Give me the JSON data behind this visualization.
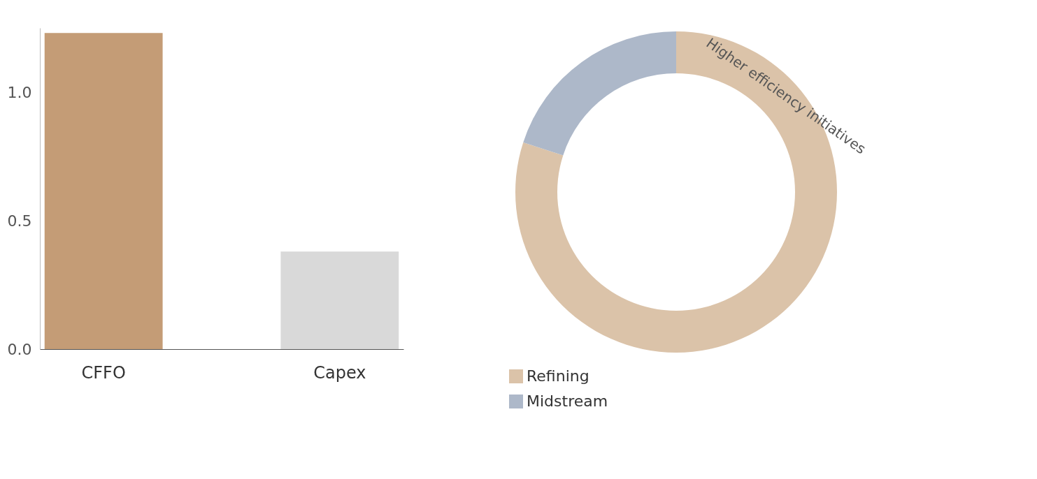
{
  "chart_data": [
    {
      "type": "bar",
      "categories": [
        "CFFO",
        "Capex"
      ],
      "values": [
        1.23,
        0.38
      ],
      "colors": [
        "#c49c76",
        "#d9d9d9"
      ],
      "ylim": [
        0,
        1.25
      ],
      "yticks": [
        {
          "value": 0,
          "label": "0.0"
        },
        {
          "value": 0.5,
          "label": "0.5"
        },
        {
          "value": 1,
          "label": "1.0"
        }
      ],
      "grid": false
    },
    {
      "type": "donut",
      "categories": [
        "Refining",
        "Midstream"
      ],
      "values": [
        80,
        20
      ],
      "colors": [
        "#dbc3a9",
        "#adb8c9"
      ],
      "legend": "bottom",
      "annotations": [
        "Higher efficiency initiatives"
      ]
    }
  ]
}
